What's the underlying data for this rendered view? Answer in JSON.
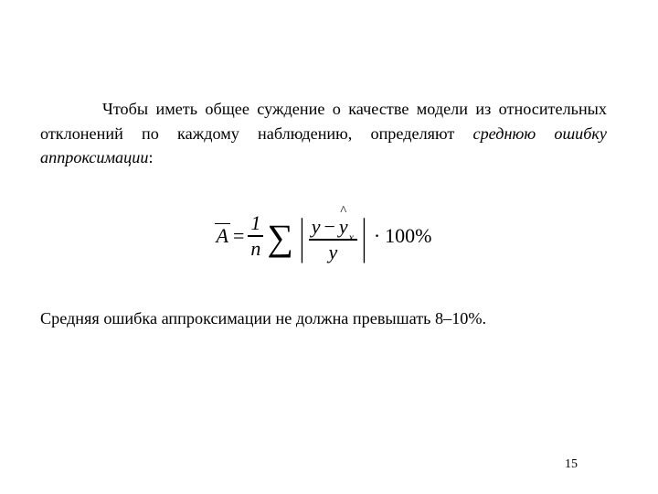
{
  "paragraph1": {
    "lead": "Чтобы иметь общее суждение о качестве модели из относительных отклонений по каждому наблюдению, определяют ",
    "term": "среднюю ошибку аппроксимации",
    "tail": ":"
  },
  "formula": {
    "lhs_symbol": "A",
    "equals": "=",
    "one": "1",
    "n": "n",
    "sigma": "∑",
    "abs_open": "|",
    "abs_close": "|",
    "y": "y",
    "minus": "−",
    "yhat": "y",
    "hat": "^",
    "sub_x": "x",
    "denom": "y",
    "dot": "·",
    "hundred": "100%"
  },
  "paragraph2": "Средняя ошибка аппроксимации не должна превышать 8–10%.",
  "pageNumber": "15",
  "colors": {
    "text": "#000000",
    "background": "#ffffff"
  },
  "font": {
    "family": "Times New Roman",
    "body_size_pt": 14,
    "formula_size_pt": 17
  }
}
